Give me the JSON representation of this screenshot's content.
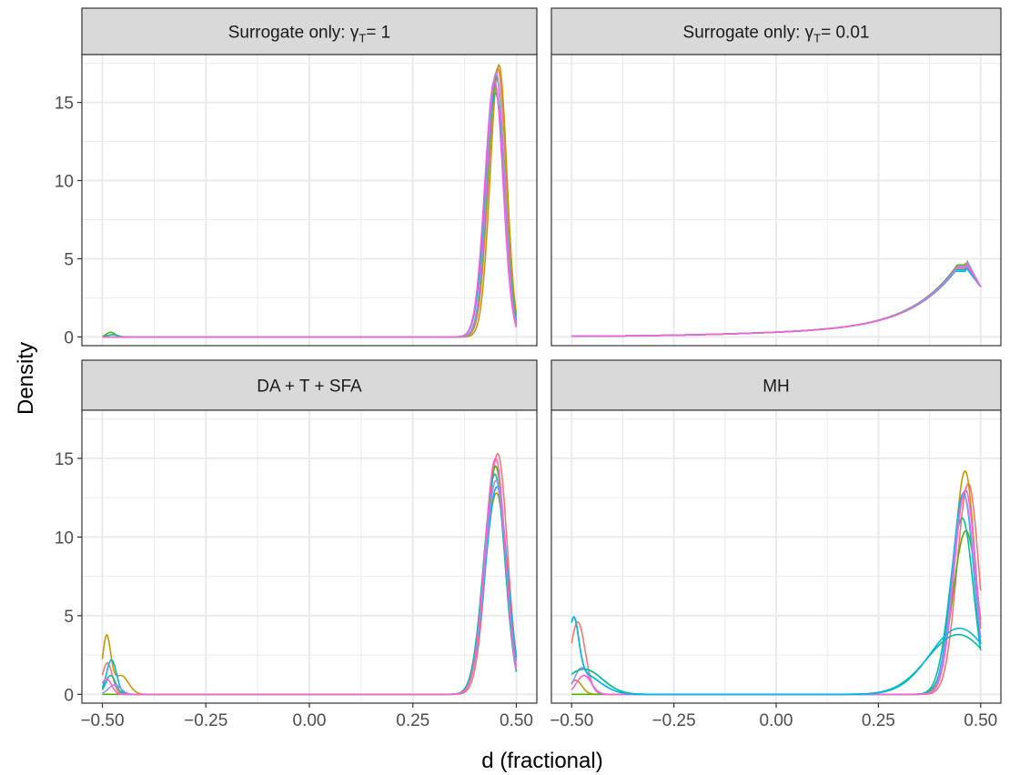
{
  "chart_data": {
    "type": "line",
    "layout": "facet-grid-2x2",
    "xlabel": "d (fractional)",
    "ylabel": "Density",
    "xlim": [
      -0.5,
      0.5
    ],
    "ylim": [
      0,
      17.5
    ],
    "xticks": [
      -0.5,
      -0.25,
      0.0,
      0.25,
      0.5
    ],
    "xtick_labels": [
      "−0.50",
      "−0.25",
      "0.00",
      "0.25",
      "0.50"
    ],
    "yticks": [
      0,
      5,
      10,
      15
    ],
    "ytick_labels": [
      "0",
      "5",
      "10",
      "15"
    ],
    "grid": true,
    "legend": "none",
    "series_colors": [
      "#F8766D",
      "#C49A00",
      "#53B400",
      "#00C094",
      "#00B6EB",
      "#A58AFF",
      "#FB61D7"
    ],
    "panels": [
      {
        "strip_prefix": "Surrogate only: γ",
        "strip_sub": "T",
        "strip_suffix": "= 1",
        "curves": [
          {
            "peak_x": 0.455,
            "peak_y": 17.2,
            "sd": 0.022,
            "min_y": 0.0
          },
          {
            "peak_x": 0.458,
            "peak_y": 17.4,
            "sd": 0.021,
            "min_y": 0.0
          },
          {
            "peak_x": 0.452,
            "peak_y": 16.6,
            "sd": 0.022,
            "min_y": 0.0
          },
          {
            "peak_x": 0.45,
            "peak_y": 15.6,
            "sd": 0.024,
            "min_y": 0.0
          },
          {
            "peak_x": 0.448,
            "peak_y": 16.2,
            "sd": 0.023,
            "min_y": 0.0
          },
          {
            "peak_x": 0.451,
            "peak_y": 16.9,
            "sd": 0.022,
            "min_y": 0.0
          },
          {
            "peak_x": 0.447,
            "peak_y": 16.4,
            "sd": 0.023,
            "min_y": 0.0
          }
        ],
        "left_bumps": [
          {
            "series": 2,
            "x": -0.48,
            "y": 0.3,
            "sd": 0.01
          },
          {
            "series": 3,
            "x": -0.475,
            "y": 0.15,
            "sd": 0.012
          }
        ],
        "tail": 0
      },
      {
        "strip_prefix": "Surrogate only: γ",
        "strip_sub": "T",
        "strip_suffix": "= 0.01",
        "curves": [
          {
            "peak_x": 0.465,
            "peak_y": 4.5,
            "sd": 0.0,
            "min_y": 0.0
          },
          {
            "peak_x": 0.462,
            "peak_y": 4.4,
            "sd": 0.0,
            "min_y": 0.0
          },
          {
            "peak_x": 0.466,
            "peak_y": 4.6,
            "sd": 0.0,
            "min_y": 0.0
          },
          {
            "peak_x": 0.46,
            "peak_y": 4.3,
            "sd": 0.0,
            "min_y": 0.0
          },
          {
            "peak_x": 0.463,
            "peak_y": 4.2,
            "sd": 0.0,
            "min_y": 0.0
          },
          {
            "peak_x": 0.467,
            "peak_y": 4.5,
            "sd": 0.0,
            "min_y": 0.0
          },
          {
            "peak_x": 0.464,
            "peak_y": 4.4,
            "sd": 0.0,
            "min_y": 0.0
          }
        ],
        "left_bumps": [],
        "tail": 1
      },
      {
        "strip_prefix": "DA + T + SFA",
        "strip_sub": "",
        "strip_suffix": "",
        "curves": [
          {
            "peak_x": 0.455,
            "peak_y": 15.3,
            "sd": 0.026,
            "min_y": 0.0
          },
          {
            "peak_x": 0.452,
            "peak_y": 12.8,
            "sd": 0.028,
            "min_y": 0.0
          },
          {
            "peak_x": 0.45,
            "peak_y": 14.5,
            "sd": 0.026,
            "min_y": 0.0
          },
          {
            "peak_x": 0.448,
            "peak_y": 14.0,
            "sd": 0.027,
            "min_y": 0.0
          },
          {
            "peak_x": 0.453,
            "peak_y": 13.2,
            "sd": 0.028,
            "min_y": 0.0
          },
          {
            "peak_x": 0.451,
            "peak_y": 13.6,
            "sd": 0.027,
            "min_y": 0.0
          },
          {
            "peak_x": 0.45,
            "peak_y": 15.0,
            "sd": 0.026,
            "min_y": 0.0
          }
        ],
        "left_bumps": [
          {
            "series": 0,
            "x": -0.488,
            "y": 2.0,
            "sd": 0.012
          },
          {
            "series": 1,
            "x": -0.49,
            "y": 3.6,
            "sd": 0.01
          },
          {
            "series": 1,
            "x": -0.455,
            "y": 1.2,
            "sd": 0.018
          },
          {
            "series": 3,
            "x": -0.48,
            "y": 1.2,
            "sd": 0.012
          },
          {
            "series": 4,
            "x": -0.478,
            "y": 2.2,
            "sd": 0.012
          },
          {
            "series": 5,
            "x": -0.47,
            "y": 0.6,
            "sd": 0.015
          },
          {
            "series": 6,
            "x": -0.49,
            "y": 1.0,
            "sd": 0.012
          }
        ],
        "tail": 0
      },
      {
        "strip_prefix": "MH",
        "strip_sub": "",
        "strip_suffix": "",
        "curves": [
          {
            "peak_x": 0.47,
            "peak_y": 13.4,
            "sd": 0.028,
            "min_y": 0.0
          },
          {
            "peak_x": 0.462,
            "peak_y": 14.2,
            "sd": 0.027,
            "min_y": 0.0
          },
          {
            "peak_x": 0.464,
            "peak_y": 10.4,
            "sd": 0.032,
            "min_y": 0.0
          },
          {
            "peak_x": 0.455,
            "peak_y": 11.2,
            "sd": 0.03,
            "min_y": 0.0
          },
          {
            "peak_x": 0.458,
            "peak_y": 12.8,
            "sd": 0.028,
            "min_y": 0.0
          },
          {
            "peak_x": 0.46,
            "peak_y": 12.6,
            "sd": 0.028,
            "min_y": 0.0
          },
          {
            "peak_x": 0.463,
            "peak_y": 13.0,
            "sd": 0.028,
            "min_y": 0.0
          }
        ],
        "wide_curves": [
          {
            "series": 3,
            "peak_x": 0.445,
            "peak_y": 3.8,
            "sd": 0.075
          },
          {
            "series": 4,
            "peak_x": 0.448,
            "peak_y": 4.2,
            "sd": 0.072
          }
        ],
        "left_bumps": [
          {
            "series": 0,
            "x": -0.485,
            "y": 4.6,
            "sd": 0.018
          },
          {
            "series": 1,
            "x": -0.49,
            "y": 0.9,
            "sd": 0.015
          },
          {
            "series": 3,
            "x": -0.47,
            "y": 1.6,
            "sd": 0.045
          },
          {
            "series": 4,
            "x": -0.495,
            "y": 3.6,
            "sd": 0.012
          },
          {
            "series": 4,
            "x": -0.48,
            "y": 1.4,
            "sd": 0.045
          },
          {
            "series": 5,
            "x": -0.475,
            "y": 1.7,
            "sd": 0.018
          },
          {
            "series": 6,
            "x": -0.47,
            "y": 1.2,
            "sd": 0.018
          }
        ],
        "tail": 0
      }
    ]
  }
}
